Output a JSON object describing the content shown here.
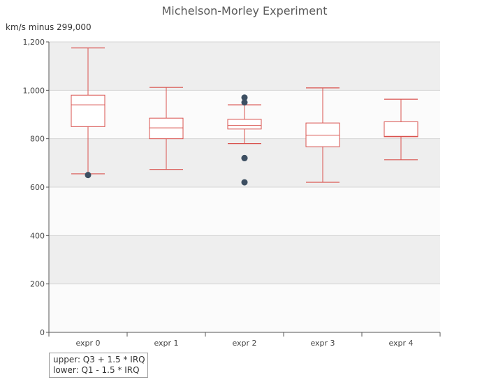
{
  "chart_data": {
    "type": "boxplot",
    "title": "Michelson-Morley Experiment",
    "ylabel": "km/s minus 299,000",
    "ylim": [
      0,
      1200
    ],
    "yticks": [
      0,
      200,
      400,
      600,
      800,
      1000,
      1200
    ],
    "ytick_labels": [
      "0",
      "200",
      "400",
      "600",
      "800",
      "1,000",
      "1,200"
    ],
    "grid": true,
    "categories": [
      "expr 0",
      "expr 1",
      "expr 2",
      "expr 3",
      "expr 4"
    ],
    "boxes": [
      {
        "name": "expr 0",
        "low": 655,
        "q1": 850,
        "median": 940,
        "q3": 980,
        "high": 1175,
        "outliers": [
          650
        ]
      },
      {
        "name": "expr 1",
        "low": 673,
        "q1": 800,
        "median": 845,
        "q3": 885,
        "high": 1012,
        "outliers": []
      },
      {
        "name": "expr 2",
        "low": 780,
        "q1": 840,
        "median": 855,
        "q3": 880,
        "high": 940,
        "outliers": [
          970,
          950,
          720,
          720,
          620
        ]
      },
      {
        "name": "expr 3",
        "low": 620,
        "q1": 767,
        "median": 815,
        "q3": 865,
        "high": 1010,
        "outliers": []
      },
      {
        "name": "expr 4",
        "low": 713,
        "q1": 808,
        "median": 810,
        "q3": 870,
        "high": 963,
        "outliers": []
      }
    ],
    "box_color": "#d9534f",
    "outlier_color": "#3d4f62",
    "band_colors": [
      "#eeeeee",
      "#fbfbfb"
    ]
  },
  "annotation": {
    "upper": "upper: Q3 + 1.5 * IRQ",
    "lower": "lower: Q1 - 1.5 * IRQ"
  }
}
